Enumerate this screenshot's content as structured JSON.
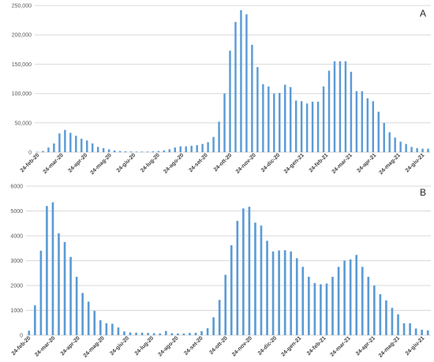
{
  "chart_data": [
    {
      "panel_label": "A",
      "type": "bar",
      "ylim": [
        0,
        250000
      ],
      "yticks": [
        "0",
        "50,000",
        "100,000",
        "150,000",
        "200,000",
        "250,000"
      ],
      "grid": true,
      "bar_color": "#5b9bd5",
      "xticks": [
        "24-feb-20",
        "24-mar-20",
        "24-apr-20",
        "24-mag-20",
        "24-giu-20",
        "24-lug-20",
        "24-ago-20",
        "24-set-20",
        "24-ott-20",
        "24-nov-20",
        "24-dic-20",
        "24-gen-21",
        "24-feb-21",
        "24-mar-21",
        "24-apr-21",
        "24-mag-21",
        "24-giu-21"
      ],
      "values": [
        500,
        2000,
        8000,
        15000,
        32000,
        38000,
        33000,
        28000,
        23000,
        20000,
        15000,
        9000,
        7000,
        5000,
        3000,
        2000,
        1500,
        1200,
        1000,
        1000,
        1000,
        1500,
        2000,
        3000,
        5000,
        8000,
        10000,
        10000,
        11000,
        12000,
        14000,
        17000,
        26000,
        52000,
        100000,
        173000,
        222000,
        242000,
        235000,
        183000,
        145000,
        116000,
        112000,
        100000,
        101000,
        115000,
        111000,
        88000,
        87000,
        83000,
        86000,
        86000,
        112000,
        139000,
        155000,
        155000,
        155000,
        137000,
        104000,
        104000,
        92000,
        87000,
        69000,
        50000,
        34000,
        25000,
        18000,
        14000,
        9000,
        7000,
        6000,
        6000
      ]
    },
    {
      "panel_label": "B",
      "type": "bar",
      "ylim": [
        0,
        6000
      ],
      "yticks": [
        "0",
        "1000",
        "2000",
        "3000",
        "4000",
        "5000",
        "6000"
      ],
      "grid": true,
      "bar_color": "#5b9bd5",
      "xticks": [
        "24-feb-20",
        "24-mar-20",
        "24-apr-20",
        "24-mag-20",
        "24-giu-20",
        "24-lug-20",
        "24-ago-20",
        "24-set-20",
        "24-ott-20",
        "24-nov-20",
        "24-dic-20",
        "24-gen-21",
        "24-feb-21",
        "24-mar-21",
        "24-apr-21",
        "24-mag-21",
        "24-giu-21"
      ],
      "values": [
        180,
        1200,
        3400,
        5200,
        5350,
        4100,
        3750,
        3150,
        2350,
        1700,
        1350,
        980,
        600,
        480,
        460,
        310,
        150,
        110,
        100,
        100,
        90,
        80,
        70,
        170,
        80,
        70,
        70,
        90,
        100,
        160,
        280,
        720,
        1420,
        2430,
        3620,
        4600,
        5100,
        5170,
        4530,
        4410,
        3800,
        3370,
        3410,
        3420,
        3370,
        3100,
        2750,
        2350,
        2100,
        2050,
        2080,
        2350,
        2750,
        3000,
        3050,
        3230,
        2750,
        2350,
        2000,
        1650,
        1400,
        1100,
        840,
        480,
        480,
        270,
        220,
        190
      ]
    }
  ]
}
